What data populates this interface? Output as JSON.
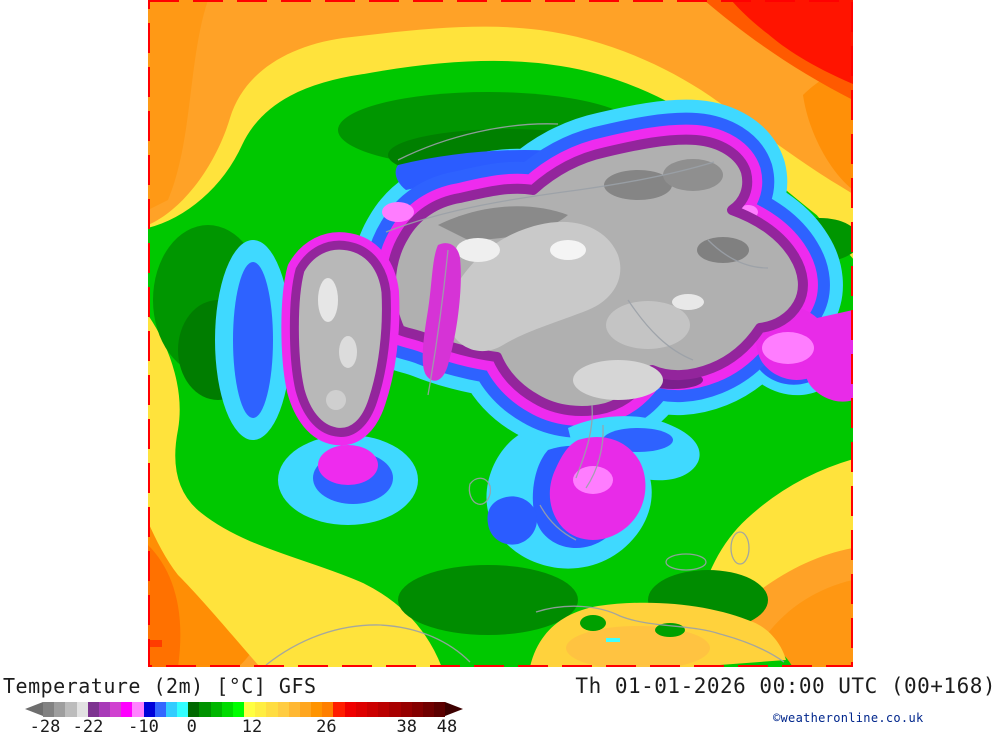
{
  "legend": {
    "title": "Temperature (2m) [°C] GFS",
    "timestamp": "Th 01-01-2026 00:00 UTC (00+168)",
    "copyright": "©weatheronline.co.uk",
    "copyright_color": "#00268c"
  },
  "scale": {
    "unit": "°C",
    "ticks": [
      "-28",
      "-22",
      "-10",
      "0",
      "12",
      "26",
      "38",
      "48"
    ],
    "tick_positions_pct": [
      0.5,
      11.2,
      25,
      37,
      52,
      70.5,
      90.5,
      100.5
    ],
    "cell_colors": [
      "#828282",
      "#9e9e9e",
      "#bcbcbc",
      "#e2e2e2",
      "#7d3390",
      "#a83ab8",
      "#d042d0",
      "#ff00ff",
      "#ff82ff",
      "#0000d9",
      "#3366ff",
      "#33ccff",
      "#33ffff",
      "#006900",
      "#009200",
      "#00b600",
      "#00db00",
      "#00ff00",
      "#ffff42",
      "#ffee42",
      "#ffdd42",
      "#ffcc42",
      "#ffb833",
      "#ffa61f",
      "#ff9400",
      "#ff7f00",
      "#ff1e00",
      "#f00000",
      "#de0000",
      "#cc0000",
      "#ba0000",
      "#a80000",
      "#960000",
      "#840000",
      "#700000",
      "#5c0000"
    ],
    "arrow_left_color": "#6e6e6e",
    "arrow_right_color": "#3d0000"
  },
  "map": {
    "border_color": "#ff0000",
    "palette": {
      "warm_orange": "#ffa227",
      "deep_orange": "#ff8e05",
      "hot_red": "#ff1400",
      "mild_yellow": "#ffe33c",
      "amber": "#ffc341",
      "cool_green": "#00c800",
      "cold_cyan": "#3fd9ff",
      "cold_blue": "#2e62ff",
      "vcold_magenta": "#ee2bee",
      "vcold_purple": "#93259c",
      "extreme_gray": "#b0b0b0",
      "coastline_gray": "#9ba1a8"
    }
  }
}
